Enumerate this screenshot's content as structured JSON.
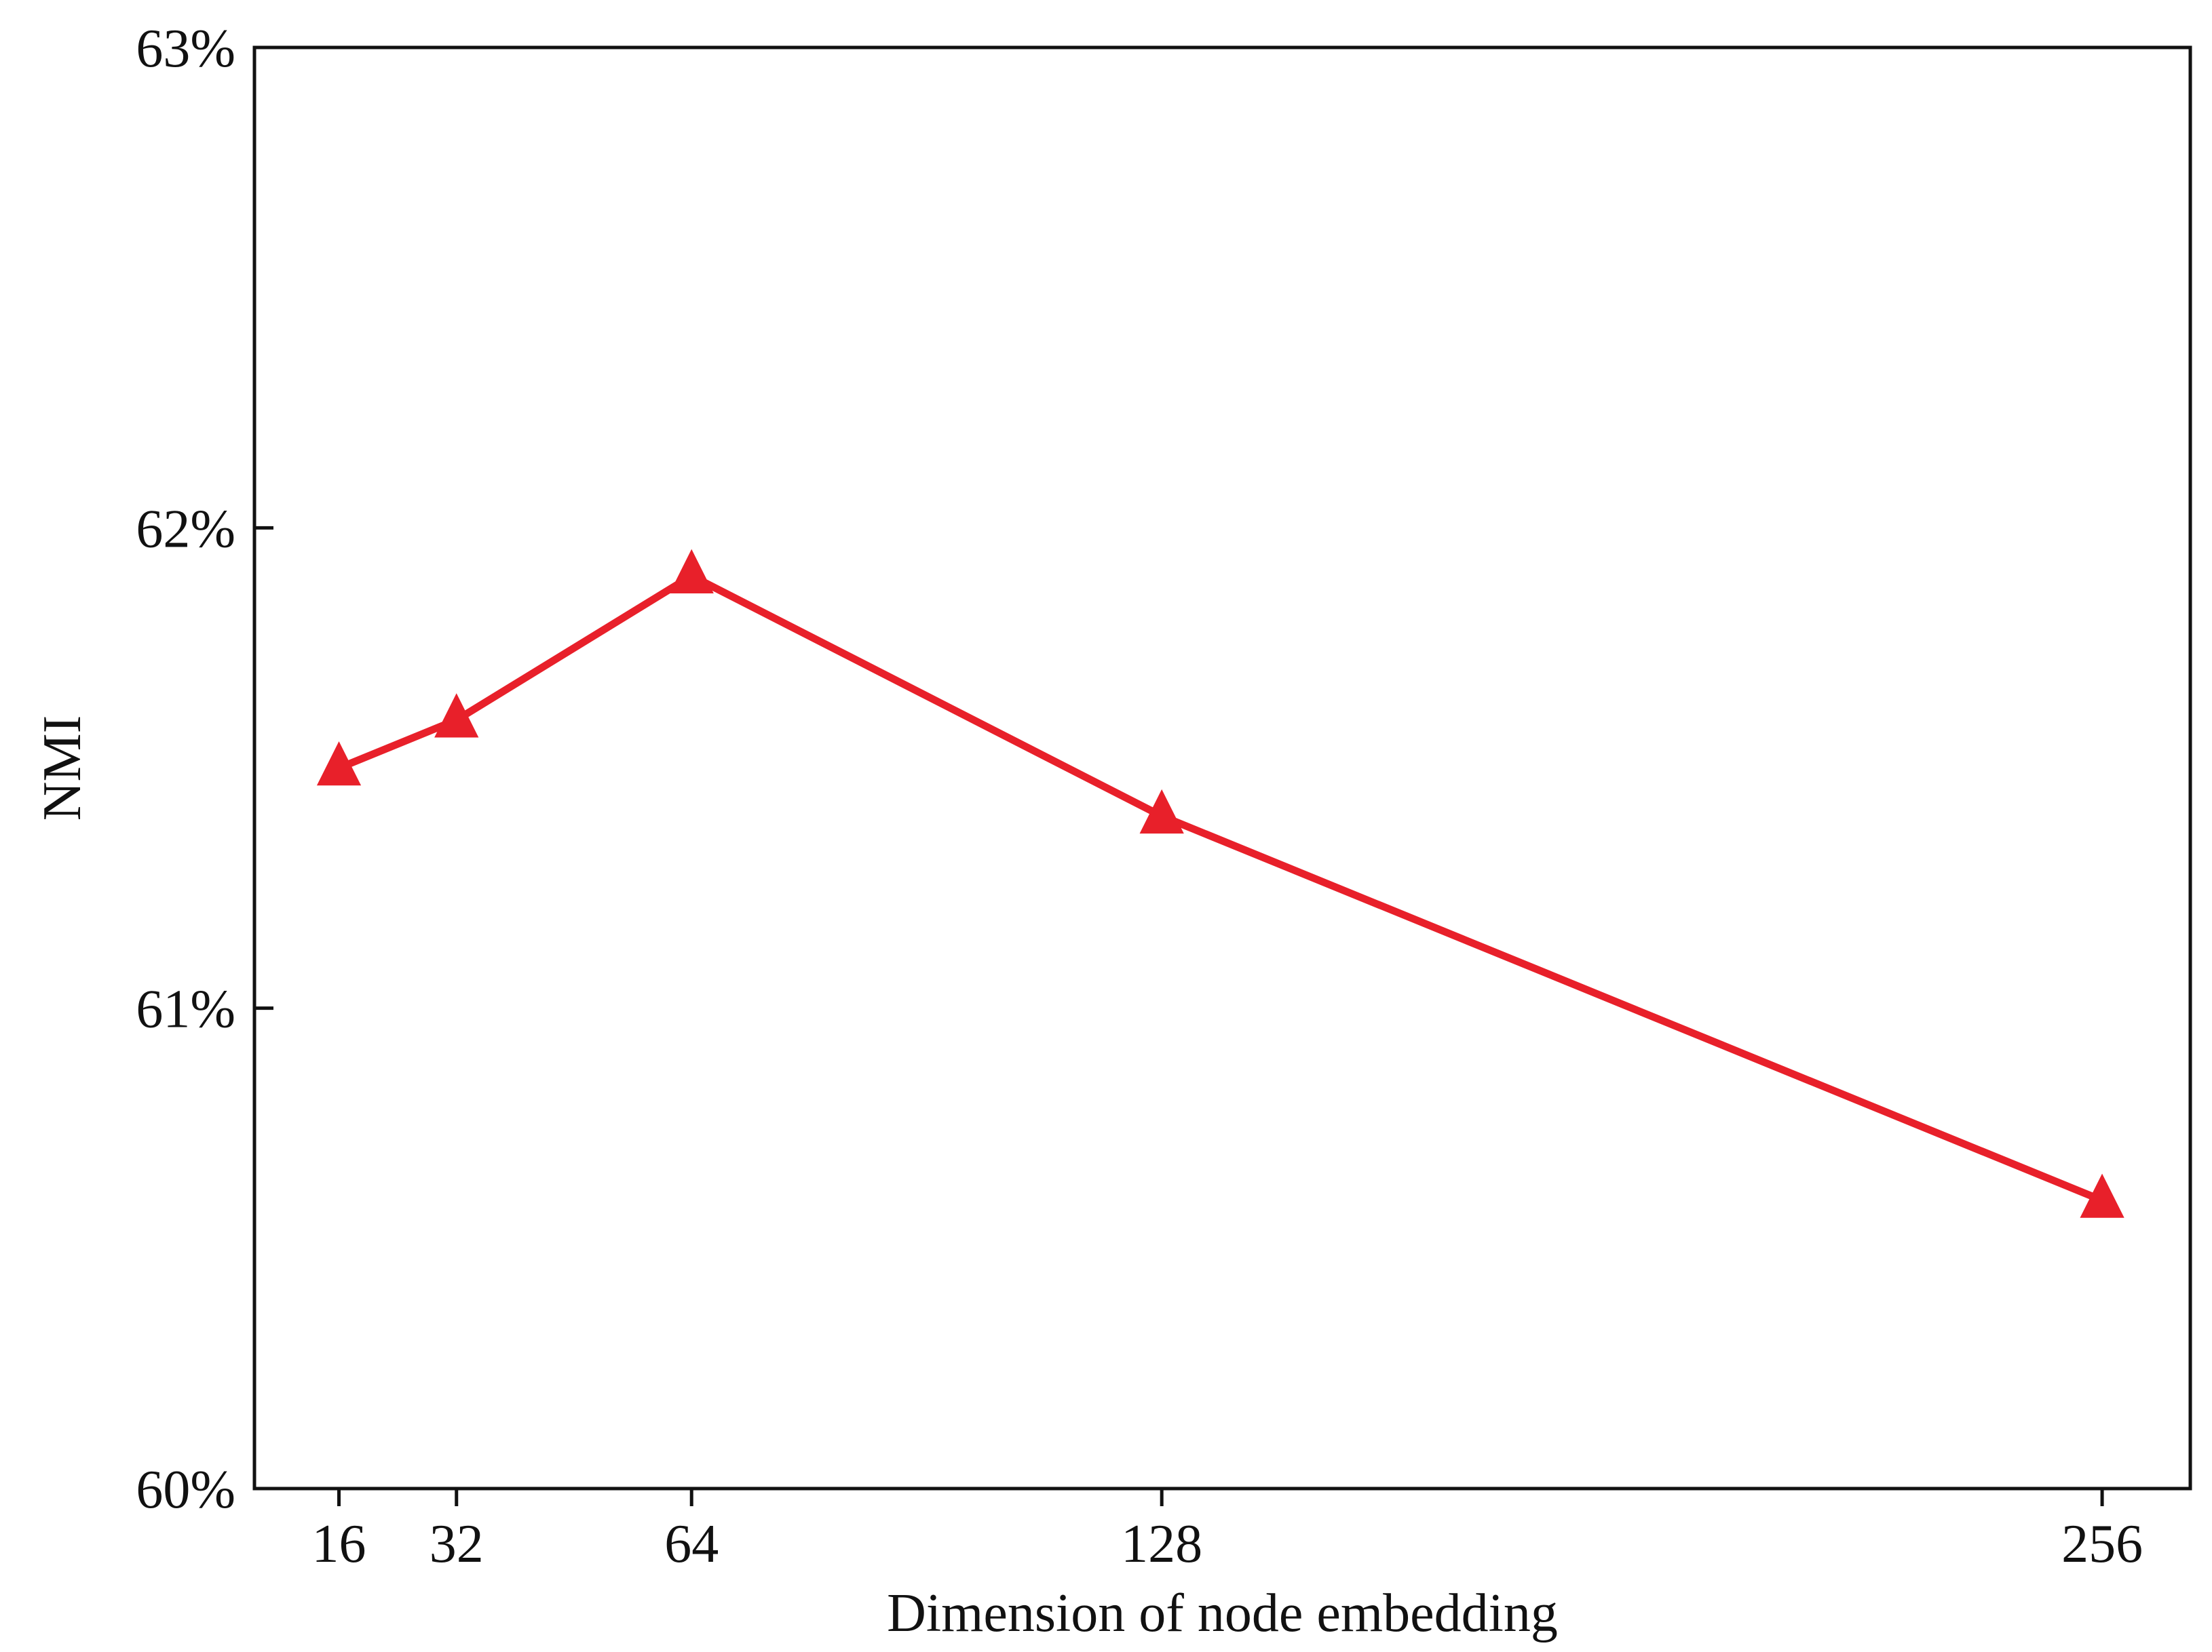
{
  "chart_data": {
    "type": "line",
    "title": "",
    "xlabel": "Dimension of node embedding",
    "ylabel": "NMI",
    "x": [
      16,
      32,
      64,
      128,
      256
    ],
    "x_tick_labels": [
      "16",
      "32",
      "64",
      "128",
      "256"
    ],
    "y_ticks": [
      60,
      61,
      62,
      63
    ],
    "y_tick_labels": [
      "60%",
      "61%",
      "62%",
      "63%"
    ],
    "ylim": [
      60,
      63
    ],
    "xlim": [
      4.5,
      268
    ],
    "grid": false,
    "legend": "none",
    "series": [
      {
        "values": [
          61.5,
          61.6,
          61.9,
          61.4,
          60.6
        ],
        "color": "#e8202a",
        "marker": "triangle"
      }
    ]
  }
}
